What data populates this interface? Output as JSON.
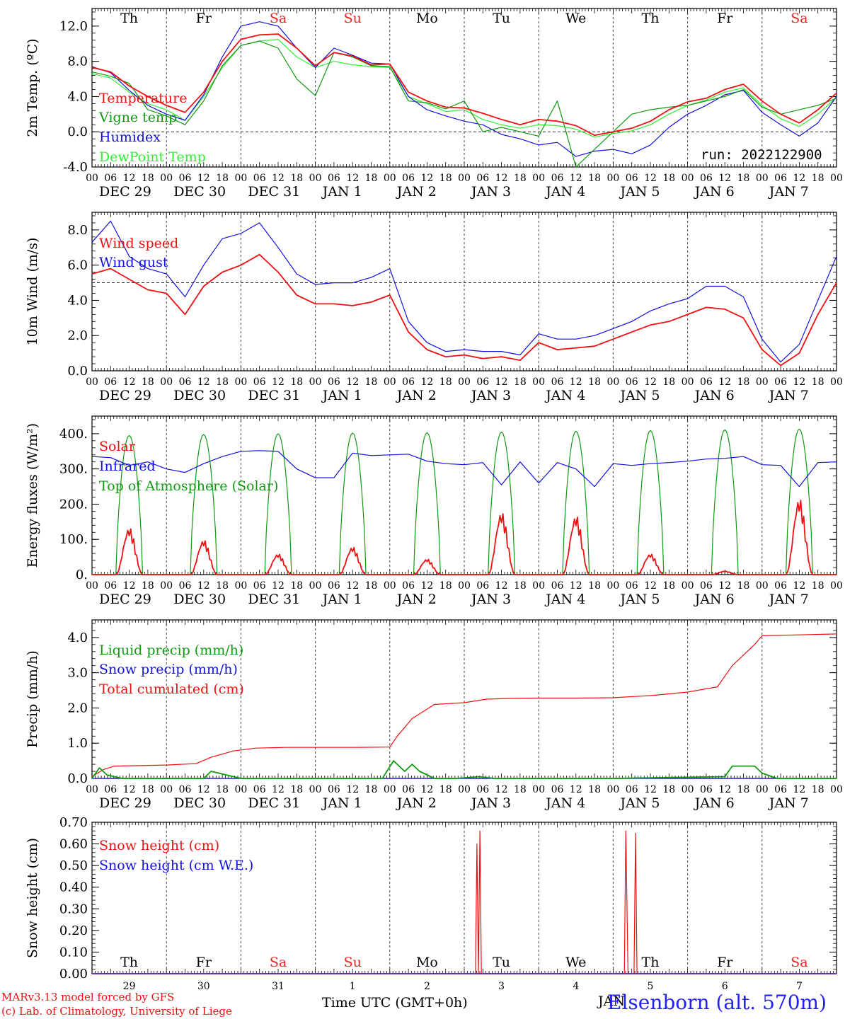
{
  "station": "Elsenborn (alt. 570m)",
  "credit_line1": "MARv3.13 model forced by GFS",
  "credit_line2": "(c) Lab. of Climatology, University of Liege",
  "run_label": "run: 2022122900",
  "time_axis_label": "Time UTC (GMT+0h)",
  "month_label_bottom": "JAN",
  "hour_ticks": [
    "00",
    "06",
    "12",
    "18"
  ],
  "date_labels": [
    "DEC 29",
    "DEC 30",
    "DEC 31",
    "JAN  1",
    "JAN  2",
    "JAN  3",
    "JAN  4",
    "JAN  5",
    "JAN  6",
    "JAN  7"
  ],
  "day_names": [
    "Th",
    "Fr",
    "Sa",
    "Su",
    "Mo",
    "Tu",
    "We",
    "Th",
    "Fr",
    "Sa"
  ],
  "day_numbers": [
    "29",
    "30",
    "31",
    "1",
    "2",
    "3",
    "4",
    "5",
    "6",
    "7"
  ],
  "weekend_color": "#ee2222",
  "weekday_color": "#000000",
  "colors": {
    "red": "#ee1111",
    "green": "#119911",
    "blue": "#1111dd",
    "lime": "#33ee33"
  },
  "chart_data": [
    {
      "type": "line",
      "ylabel": "2m Temp. (ºC)",
      "ylim": [
        -4,
        14
      ],
      "yticks": [
        "-4.0",
        "0.0",
        "4.0",
        "8.0",
        "12.0"
      ],
      "ytick_values": [
        -4,
        0,
        4,
        8,
        12
      ],
      "ref_line": 0,
      "x_days": [
        0,
        0.25,
        0.5,
        0.75,
        1,
        1.25,
        1.5,
        1.75,
        2,
        2.25,
        2.5,
        2.75,
        3,
        3.25,
        3.5,
        3.75,
        4,
        4.25,
        4.5,
        4.75,
        5,
        5.25,
        5.5,
        5.75,
        6,
        6.25,
        6.5,
        6.75,
        7,
        7.25,
        7.5,
        7.75,
        8,
        8.25,
        8.5,
        8.75,
        9,
        9.25,
        9.5,
        9.75,
        10
      ],
      "series": [
        {
          "name": "Temperature",
          "color": "red",
          "values": [
            7.3,
            6.8,
            5.2,
            4.0,
            3.0,
            2.2,
            4.5,
            8.0,
            10.5,
            11.0,
            11.1,
            9.5,
            7.5,
            9.0,
            8.6,
            7.6,
            7.7,
            4.5,
            3.5,
            2.8,
            2.7,
            2.1,
            1.4,
            0.8,
            1.4,
            1.2,
            0.7,
            -0.4,
            0.0,
            0.4,
            1.2,
            2.5,
            3.4,
            3.8,
            4.8,
            5.4,
            3.5,
            2.0,
            1.0,
            2.5,
            4.4
          ]
        },
        {
          "name": "Vigne temp",
          "color": "green",
          "values": [
            6.8,
            6.3,
            5.5,
            2.5,
            1.8,
            0.8,
            3.5,
            7.5,
            9.8,
            10.3,
            9.5,
            6.0,
            4.1,
            9.0,
            8.5,
            7.5,
            7.4,
            3.5,
            3.3,
            2.6,
            3.5,
            0.0,
            0.5,
            0.0,
            -0.5,
            3.5,
            -4.0,
            -2.0,
            0.0,
            2.0,
            2.5,
            2.8,
            3.0,
            3.5,
            4.0,
            4.8,
            2.8,
            2.0,
            2.5,
            3.0,
            3.8
          ]
        },
        {
          "name": "Humidex",
          "color": "blue",
          "values": [
            7.4,
            6.7,
            4.7,
            3.0,
            2.0,
            1.3,
            4.2,
            8.5,
            12.0,
            12.5,
            12.0,
            9.5,
            7.3,
            9.5,
            8.7,
            7.8,
            7.7,
            4.0,
            2.5,
            1.8,
            1.2,
            0.8,
            -0.3,
            -0.8,
            -1.5,
            -1.2,
            -2.8,
            -2.2,
            -2.0,
            -2.5,
            -1.5,
            0.5,
            2.0,
            3.0,
            4.2,
            4.7,
            2.2,
            0.8,
            -0.5,
            1.0,
            4.0
          ]
        },
        {
          "name": "DewPoint Temp",
          "color": "lime",
          "values": [
            6.6,
            6.1,
            4.5,
            3.2,
            2.5,
            1.3,
            4.0,
            7.3,
            9.8,
            10.3,
            10.5,
            8.5,
            7.3,
            8.0,
            7.6,
            7.4,
            7.3,
            4.0,
            3.2,
            2.3,
            2.5,
            1.4,
            0.8,
            0.4,
            0.8,
            0.7,
            0.3,
            -0.6,
            -0.2,
            0.1,
            0.8,
            2.0,
            3.0,
            3.6,
            4.5,
            5.0,
            3.0,
            1.5,
            0.6,
            2.0,
            3.9
          ]
        }
      ]
    },
    {
      "type": "line",
      "ylabel": "10m Wind (m/s)",
      "ylim": [
        0,
        9
      ],
      "yticks": [
        "0.0",
        "2.0",
        "4.0",
        "6.0",
        "8.0"
      ],
      "ytick_values": [
        0,
        2,
        4,
        6,
        8
      ],
      "ref_line": 5,
      "x_days": [
        0,
        0.25,
        0.5,
        0.75,
        1,
        1.25,
        1.5,
        1.75,
        2,
        2.25,
        2.5,
        2.75,
        3,
        3.25,
        3.5,
        3.75,
        4,
        4.25,
        4.5,
        4.75,
        5,
        5.25,
        5.5,
        5.75,
        6,
        6.25,
        6.5,
        6.75,
        7,
        7.25,
        7.5,
        7.75,
        8,
        8.25,
        8.5,
        8.75,
        9,
        9.25,
        9.5,
        9.75,
        10
      ],
      "series": [
        {
          "name": "Wind speed",
          "color": "red",
          "values": [
            5.5,
            5.8,
            5.2,
            4.6,
            4.4,
            3.2,
            4.8,
            5.6,
            6.0,
            6.6,
            5.6,
            4.3,
            3.8,
            3.8,
            3.7,
            3.9,
            4.3,
            2.2,
            1.2,
            0.8,
            0.9,
            0.7,
            0.8,
            0.6,
            1.6,
            1.2,
            1.3,
            1.4,
            1.8,
            2.2,
            2.6,
            2.8,
            3.2,
            3.6,
            3.5,
            3.0,
            1.2,
            0.3,
            1.0,
            3.2,
            5.0
          ]
        },
        {
          "name": "Wind gust",
          "color": "blue",
          "values": [
            7.3,
            8.5,
            6.5,
            5.8,
            5.5,
            4.2,
            6.0,
            7.5,
            7.8,
            8.4,
            7.0,
            5.5,
            4.9,
            5.0,
            5.0,
            5.3,
            5.8,
            2.8,
            1.6,
            1.1,
            1.2,
            1.1,
            1.1,
            0.9,
            2.1,
            1.8,
            1.8,
            2.0,
            2.4,
            2.8,
            3.4,
            3.8,
            4.1,
            4.8,
            4.8,
            4.2,
            1.8,
            0.5,
            1.5,
            4.0,
            6.5
          ]
        }
      ]
    },
    {
      "type": "line",
      "ylabel": "Energy fluxes (W/m²)",
      "ylim": [
        0,
        450
      ],
      "yticks": [
        "0.",
        "100.",
        "200.",
        "300.",
        "400."
      ],
      "ytick_values": [
        0,
        100,
        200,
        300,
        400
      ],
      "toa_peaks": [
        395,
        398,
        400,
        402,
        403,
        405,
        407,
        409,
        411,
        413
      ],
      "solar_peaks": [
        135,
        100,
        60,
        80,
        45,
        180,
        170,
        60,
        10,
        220
      ],
      "series": [
        {
          "name": "Solar",
          "color": "red",
          "x_days": [],
          "values": []
        },
        {
          "name": "Infrared",
          "color": "blue",
          "x_days": [
            0,
            0.25,
            0.5,
            0.75,
            1,
            1.25,
            1.5,
            1.75,
            2,
            2.25,
            2.5,
            2.75,
            3,
            3.25,
            3.5,
            3.75,
            4,
            4.25,
            4.5,
            4.75,
            5,
            5.25,
            5.5,
            5.75,
            6,
            6.25,
            6.5,
            6.75,
            7,
            7.25,
            7.5,
            7.75,
            8,
            8.25,
            8.5,
            8.75,
            9,
            9.25,
            9.5,
            9.75,
            10
          ],
          "values": [
            335,
            332,
            310,
            320,
            300,
            290,
            315,
            335,
            350,
            352,
            350,
            300,
            275,
            275,
            345,
            338,
            340,
            342,
            322,
            315,
            312,
            318,
            255,
            320,
            260,
            318,
            300,
            250,
            315,
            310,
            315,
            318,
            322,
            328,
            330,
            335,
            312,
            310,
            250,
            318,
            320
          ]
        },
        {
          "name": "Top of Atmosphere (Solar)",
          "color": "green",
          "x_days": [],
          "values": []
        }
      ]
    },
    {
      "type": "line",
      "ylabel": "Precip (mm/h)",
      "ylim": [
        0,
        4.5
      ],
      "yticks": [
        "0.0",
        "1.0",
        "2.0",
        "3.0",
        "4.0"
      ],
      "ytick_values": [
        0,
        1,
        2,
        3,
        4
      ],
      "series": [
        {
          "name": "Liquid precip (mm/h)",
          "color": "green",
          "x_days": [
            0,
            0.1,
            0.2,
            0.3,
            0.4,
            1.5,
            1.6,
            1.8,
            2.0,
            3.9,
            4.05,
            4.2,
            4.3,
            4.4,
            4.6,
            4.9,
            5.2,
            5.4,
            5.7,
            6.0,
            7.0,
            8.5,
            8.6,
            8.9,
            9.0,
            9.2,
            10.0
          ],
          "values": [
            0,
            0.3,
            0.1,
            0.05,
            0,
            0,
            0.2,
            0.1,
            0,
            0,
            0.5,
            0.2,
            0.4,
            0.2,
            0,
            0,
            0.05,
            0,
            0,
            0,
            0,
            0.05,
            0.35,
            0.35,
            0.15,
            0,
            0
          ]
        },
        {
          "name": "Snow precip (mm/h)",
          "color": "blue",
          "x_days": [
            0,
            10
          ],
          "values": [
            0,
            0
          ]
        },
        {
          "name": "Total cumulated (cm)",
          "color": "red",
          "x_days": [
            0,
            0.15,
            0.3,
            1.0,
            1.4,
            1.6,
            1.9,
            2.2,
            2.6,
            3.0,
            3.5,
            4.0,
            4.1,
            4.3,
            4.6,
            5.0,
            5.3,
            5.6,
            6.0,
            6.5,
            7.0,
            7.5,
            8.0,
            8.4,
            8.6,
            8.9,
            9.0,
            10.0
          ],
          "values": [
            0.05,
            0.25,
            0.35,
            0.38,
            0.42,
            0.6,
            0.78,
            0.86,
            0.88,
            0.88,
            0.88,
            0.89,
            1.2,
            1.7,
            2.1,
            2.15,
            2.25,
            2.27,
            2.28,
            2.28,
            2.29,
            2.35,
            2.45,
            2.6,
            3.2,
            3.8,
            4.05,
            4.1
          ]
        }
      ]
    },
    {
      "type": "line",
      "ylabel": "Snow height (cm)",
      "ylim": [
        0,
        0.7
      ],
      "yticks": [
        "0.00",
        "0.10",
        "0.20",
        "0.30",
        "0.40",
        "0.50",
        "0.60",
        "0.70"
      ],
      "ytick_values": [
        0,
        0.1,
        0.2,
        0.3,
        0.4,
        0.5,
        0.6,
        0.7
      ],
      "series": [
        {
          "name": "Snow height (cm)",
          "color": "red",
          "x_days": [
            0,
            5.15,
            5.17,
            5.19,
            5.21,
            5.23,
            7.15,
            7.17,
            7.2,
            7.28,
            7.3,
            7.32,
            10.0
          ],
          "values": [
            0,
            0,
            0.6,
            0,
            0.66,
            0,
            0,
            0.66,
            0,
            0,
            0.65,
            0,
            0
          ]
        },
        {
          "name": "Snow height (cm W.E.)",
          "color": "blue",
          "x_days": [
            0,
            10
          ],
          "values": [
            0,
            0
          ]
        }
      ]
    }
  ]
}
